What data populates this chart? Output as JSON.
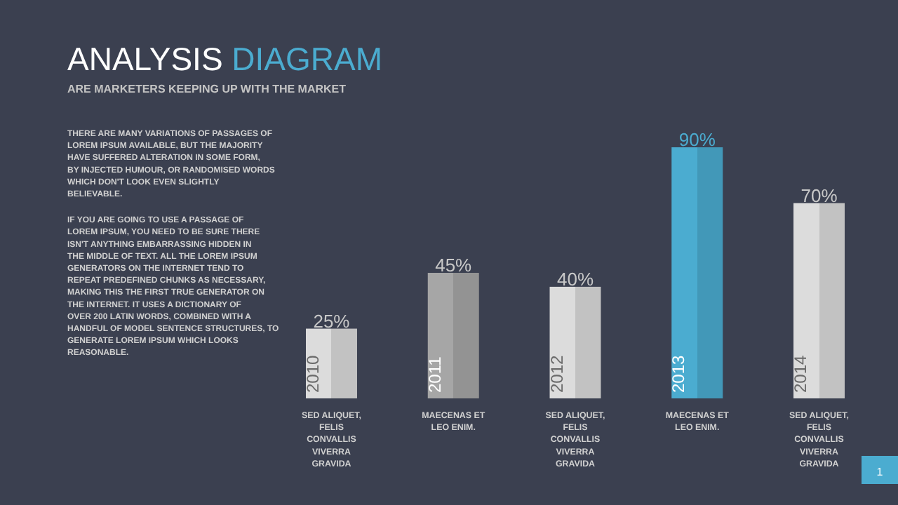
{
  "chart_data": {
    "type": "bar",
    "title": "ANALYSIS DIAGRAM",
    "subtitle": "ARE MARKETERS KEEPING UP WITH THE MARKET",
    "categories": [
      "2010",
      "2011",
      "2012",
      "2013",
      "2014"
    ],
    "values": [
      25,
      45,
      40,
      90,
      70
    ],
    "value_labels": [
      "25%",
      "45%",
      "40%",
      "90%",
      "70%"
    ],
    "colors": [
      "#dcdcdc",
      "#a6a6a6",
      "#dcdcdc",
      "#4bacd0",
      "#dcdcdc"
    ],
    "annotations": [
      "SED ALIQUET, FELIS CONVALLIS VIVERRA GRAVIDA",
      "MAECENAS ET LEO ENIM.",
      "SED ALIQUET, FELIS CONVALLIS VIVERRA GRAVIDA",
      "MAECENAS ET LEO ENIM.",
      "SED ALIQUET, FELIS CONVALLIS VIVERRA GRAVIDA",
      "THERE ARE MANY VARIATIONS OF PASSAGES OF LOREM IPSUM AVAILABLE, BUT THE MAJORITY HAVE SUFFERED ALTERATION IN SOME FORM, BY INJECTED HUMOUR, OR RANDOMISED WORDS WHICH DON'T LOOK EVEN SLIGHTLY BELIEVABLE.",
      "IF YOU ARE GOING TO USE A PASSAGE OF LOREM IPSUM, YOU NEED TO BE SURE THERE ISN'T ANYTHING EMBARRASSING HIDDEN IN THE MIDDLE OF TEXT. ALL THE LOREM IPSUM GENERATORS ON THE INTERNET TEND TO REPEAT PREDEFINED CHUNKS AS NECESSARY, MAKING THIS THE FIRST TRUE GENERATOR ON THE INTERNET. IT USES A DICTIONARY OF OVER 200 LATIN WORDS, COMBINED WITH A HANDFUL OF MODEL SENTENCE STRUCTURES, TO GENERATE LOREM IPSUM WHICH LOOKS REASONABLE.",
      "1"
    ]
  }
}
